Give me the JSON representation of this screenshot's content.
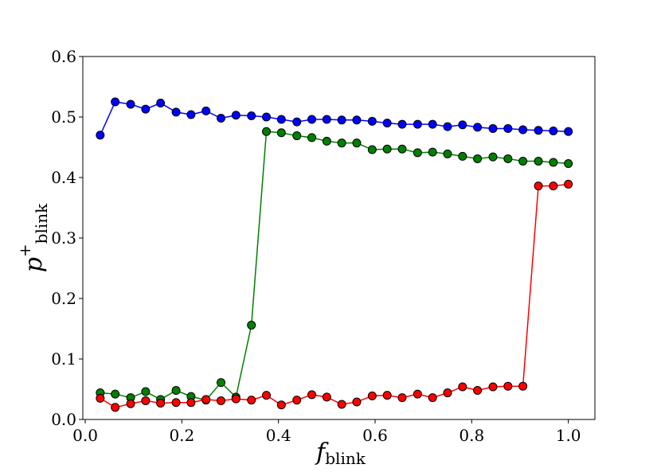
{
  "chart_data": {
    "type": "line",
    "xlabel": {
      "main": "f",
      "sub": "blink"
    },
    "ylabel": {
      "main": "p",
      "sup": "+",
      "sub": "blink"
    },
    "xlim": [
      -0.005,
      1.055
    ],
    "ylim": [
      0.0,
      0.6
    ],
    "xticks": [
      0.0,
      0.2,
      0.4,
      0.6,
      0.8,
      1.0
    ],
    "xtick_labels": [
      "0.0",
      "0.2",
      "0.4",
      "0.6",
      "0.8",
      "1.0"
    ],
    "yticks": [
      0.0,
      0.1,
      0.2,
      0.3,
      0.4,
      0.5,
      0.6
    ],
    "ytick_labels": [
      "0.0",
      "0.1",
      "0.2",
      "0.3",
      "0.4",
      "0.5",
      "0.6"
    ],
    "grid": false,
    "x": [
      0.031,
      0.062,
      0.094,
      0.125,
      0.156,
      0.188,
      0.219,
      0.25,
      0.281,
      0.312,
      0.344,
      0.375,
      0.406,
      0.438,
      0.469,
      0.5,
      0.531,
      0.562,
      0.594,
      0.625,
      0.656,
      0.688,
      0.719,
      0.75,
      0.781,
      0.812,
      0.844,
      0.875,
      0.906,
      0.938,
      0.969,
      1.0
    ],
    "series": [
      {
        "color": "#0000ff",
        "values": [
          0.47,
          0.525,
          0.521,
          0.513,
          0.523,
          0.508,
          0.504,
          0.51,
          0.498,
          0.503,
          0.502,
          0.5,
          0.496,
          0.492,
          0.496,
          0.496,
          0.495,
          0.495,
          0.493,
          0.49,
          0.488,
          0.488,
          0.488,
          0.484,
          0.487,
          0.483,
          0.481,
          0.481,
          0.479,
          0.478,
          0.477,
          0.476
        ]
      },
      {
        "color": "#008000",
        "values": [
          0.044,
          0.042,
          0.036,
          0.046,
          0.033,
          0.048,
          0.038,
          0.032,
          0.061,
          0.037,
          0.156,
          0.476,
          0.474,
          0.469,
          0.466,
          0.46,
          0.457,
          0.457,
          0.446,
          0.447,
          0.447,
          0.441,
          0.442,
          0.439,
          0.435,
          0.431,
          0.434,
          0.431,
          0.427,
          0.427,
          0.425,
          0.423
        ]
      },
      {
        "color": "#ff0000",
        "values": [
          0.035,
          0.02,
          0.026,
          0.031,
          0.027,
          0.028,
          0.028,
          0.033,
          0.031,
          0.034,
          0.032,
          0.04,
          0.024,
          0.032,
          0.041,
          0.037,
          0.025,
          0.029,
          0.039,
          0.04,
          0.036,
          0.042,
          0.036,
          0.044,
          0.054,
          0.048,
          0.054,
          0.055,
          0.055,
          0.386,
          0.386,
          0.389
        ]
      }
    ]
  }
}
